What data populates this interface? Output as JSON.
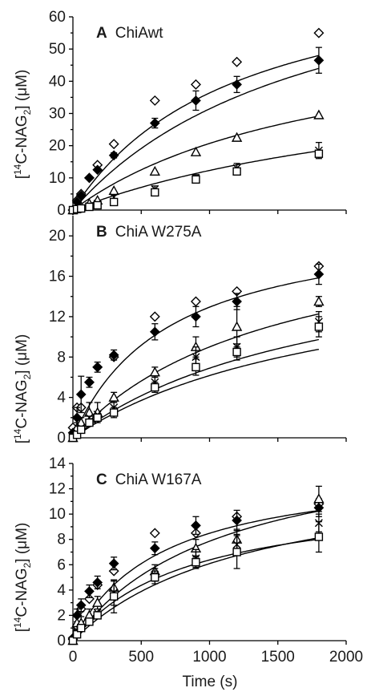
{
  "figure": {
    "ylabel_pre": "[",
    "ylabel_sup": "14",
    "ylabel_mid": "C-NAG",
    "ylabel_sub": "2",
    "ylabel_post": "] (μM)",
    "xlabel": "Time (s)"
  },
  "chart_data": [
    {
      "type": "scatter",
      "panel": "A",
      "title_letter": "A",
      "title_text": "ChiAwt",
      "xlabel": "Time (s)",
      "ylabel": "[14C-NAG2] (μM)",
      "xlim": [
        0,
        2000
      ],
      "ylim": [
        0,
        60
      ],
      "yticks": [
        0,
        10,
        20,
        30,
        40,
        50,
        60
      ],
      "ytick_labels": [
        "0",
        "10",
        "20",
        "30",
        "40",
        "50",
        "60"
      ],
      "x": [
        0,
        30,
        60,
        120,
        180,
        300,
        600,
        900,
        1200,
        1800
      ],
      "series": [
        {
          "marker": "diamond-open",
          "values": [
            0,
            3,
            5,
            10,
            14,
            20.5,
            34,
            39,
            46,
            55
          ]
        },
        {
          "marker": "diamond-filled",
          "values": [
            0,
            2.5,
            4.5,
            10,
            12.5,
            17,
            27,
            34,
            39,
            46.5
          ],
          "errors": [
            0,
            0,
            0,
            0,
            0,
            0.8,
            1.5,
            3,
            2.5,
            4
          ]
        },
        {
          "marker": "triangle-open",
          "values": [
            0,
            0.5,
            1,
            2,
            3,
            6,
            12,
            18,
            22.5,
            29.5
          ]
        },
        {
          "marker": "cross",
          "values": [
            0,
            0.3,
            0.6,
            1.2,
            2,
            4,
            6.5,
            10,
            13,
            18.5
          ],
          "errors": [
            0,
            0,
            0,
            0,
            0,
            0.7,
            1,
            1,
            1.5,
            2.5
          ]
        },
        {
          "marker": "square-open",
          "values": [
            0,
            0.3,
            0.5,
            1,
            1.5,
            2.5,
            5.5,
            9.5,
            12,
            17.5
          ]
        }
      ],
      "fits": [
        {
          "a": 80,
          "b": 1200
        },
        {
          "a": 88,
          "b": 1800
        },
        {
          "a": 60,
          "b": 1900
        },
        {
          "a": 48,
          "b": 2900
        }
      ]
    },
    {
      "type": "scatter",
      "panel": "B",
      "title_letter": "B",
      "title_text": "ChiA W275A",
      "xlabel": "Time (s)",
      "ylabel": "[14C-NAG2] (μM)",
      "xlim": [
        0,
        2000
      ],
      "ylim": [
        0,
        22
      ],
      "yticks": [
        0,
        4,
        8,
        12,
        16,
        20
      ],
      "ytick_labels": [
        "0",
        "4",
        "8",
        "12",
        "16",
        "20"
      ],
      "x": [
        0,
        30,
        60,
        120,
        180,
        300,
        600,
        900,
        1200,
        1800
      ],
      "series": [
        {
          "marker": "diamond-open",
          "values": [
            1,
            3,
            3,
            5.5,
            7,
            8,
            12,
            13.5,
            14.5,
            17
          ]
        },
        {
          "marker": "diamond-filled",
          "values": [
            0.5,
            2,
            4.3,
            5.5,
            7,
            8.2,
            10.5,
            12,
            13.5,
            16.2
          ],
          "errors": [
            0,
            1,
            1.8,
            0.5,
            0.5,
            0.5,
            0.8,
            1,
            0.8,
            1
          ]
        },
        {
          "marker": "triangle-open",
          "values": [
            0,
            1,
            1.5,
            2.5,
            2.5,
            4,
            6.5,
            9,
            11,
            13.5
          ],
          "errors": [
            0,
            0.5,
            0.5,
            1,
            1,
            0.5,
            0.5,
            1,
            2,
            0.5
          ]
        },
        {
          "marker": "cross",
          "values": [
            0,
            0.5,
            1,
            2,
            2.3,
            3,
            5.5,
            8,
            9,
            11.5
          ],
          "errors": [
            0,
            0,
            0,
            0,
            0,
            0.5,
            0.5,
            1,
            1,
            1
          ]
        },
        {
          "marker": "square-open",
          "values": [
            0,
            0.3,
            0.8,
            1.5,
            2,
            2.5,
            5,
            7,
            8.5,
            11
          ],
          "errors": [
            0,
            0,
            0,
            0,
            0,
            0.5,
            0.5,
            0.8,
            0.8,
            1
          ]
        }
      ],
      "fits": [
        {
          "a": 22,
          "b": 700
        },
        {
          "a": 22.5,
          "b": 1500
        },
        {
          "a": 20,
          "b": 1900
        },
        {
          "a": 18.5,
          "b": 2000
        }
      ]
    },
    {
      "type": "scatter",
      "panel": "C",
      "title_letter": "C",
      "title_text": "ChiA W167A",
      "xlabel": "Time (s)",
      "ylabel": "[14C-NAG2] (μM)",
      "xlim": [
        0,
        2000
      ],
      "ylim": [
        0,
        14
      ],
      "yticks": [
        0,
        2,
        4,
        6,
        8,
        10,
        12,
        14
      ],
      "ytick_labels": [
        "0",
        "2",
        "4",
        "6",
        "8",
        "10",
        "12",
        "14"
      ],
      "xticks": [
        0,
        500,
        1000,
        1500,
        2000
      ],
      "xtick_labels": [
        "0",
        "500",
        "1000",
        "1500",
        "2000"
      ],
      "x": [
        0,
        30,
        60,
        120,
        180,
        300,
        600,
        900,
        1200,
        1800
      ],
      "series": [
        {
          "marker": "diamond-open",
          "values": [
            0.2,
            1,
            2.5,
            3.3,
            4.4,
            5.5,
            8.5,
            8.5,
            9.8,
            10.8
          ]
        },
        {
          "marker": "diamond-filled",
          "values": [
            0.1,
            2,
            2.8,
            3.9,
            4.6,
            6.1,
            7.3,
            9.1,
            9.5,
            10.5
          ],
          "errors": [
            0,
            0.5,
            0.5,
            0.5,
            0.5,
            0.5,
            0.5,
            0.7,
            0.8,
            0.7
          ]
        },
        {
          "marker": "triangle-open",
          "values": [
            0,
            1.4,
            1.4,
            2,
            3,
            4.2,
            5.5,
            7.3,
            8,
            11.2
          ],
          "errors": [
            0,
            0.5,
            0.5,
            0.5,
            0.5,
            0.5,
            0.5,
            0.7,
            0.8,
            1
          ]
        },
        {
          "marker": "cross",
          "values": [
            0,
            0.8,
            1,
            1.5,
            2.2,
            3.8,
            5.2,
            6.5,
            7.6,
            9.3
          ],
          "errors": [
            0,
            0,
            0,
            0,
            0,
            1,
            0.5,
            0.7,
            0.8,
            0.7
          ]
        },
        {
          "marker": "square-open",
          "values": [
            0,
            0.5,
            1,
            1.5,
            2,
            3.5,
            5,
            6.2,
            7,
            8.2
          ],
          "errors": [
            0,
            0,
            0,
            0,
            0,
            1.3,
            0.5,
            0.5,
            1.3,
            1.2
          ]
        }
      ],
      "fits": [
        {
          "a": 14,
          "b": 650
        },
        {
          "a": 16.5,
          "b": 1100
        },
        {
          "a": 14,
          "b": 1300
        },
        {
          "a": 11.8,
          "b": 850
        }
      ]
    }
  ]
}
